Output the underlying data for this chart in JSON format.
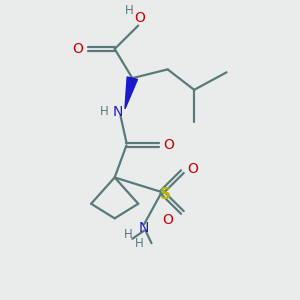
{
  "bg_color": "#eaecec",
  "bond_color": "#5a7a7a",
  "oxygen_color": "#cc0000",
  "nitrogen_color": "#1a1acc",
  "sulfur_color": "#b8b800",
  "line_width": 1.6,
  "figsize": [
    3.0,
    3.0
  ],
  "dpi": 100,
  "xlim": [
    0,
    10
  ],
  "ylim": [
    0,
    10
  ]
}
